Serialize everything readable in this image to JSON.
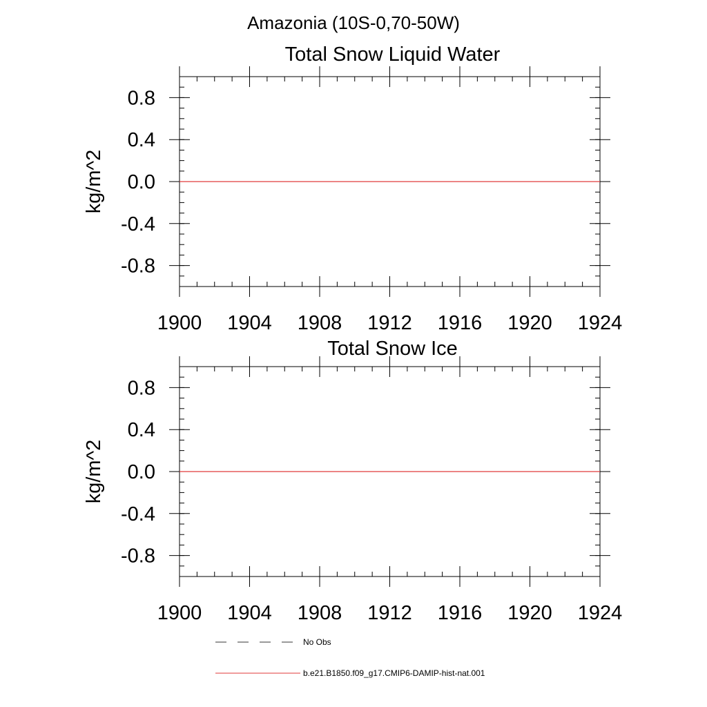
{
  "figure_title": "Amazonia (10S-0,70-50W)",
  "chart_data": [
    {
      "type": "line",
      "title": "Total Snow Liquid Water",
      "xlabel": "",
      "ylabel": "kg/m^2",
      "xlim": [
        1900,
        1924
      ],
      "ylim": [
        -1.0,
        1.0
      ],
      "x_ticks": [
        1900,
        1904,
        1908,
        1912,
        1916,
        1920,
        1924
      ],
      "x_tick_labels": [
        "1900",
        "1904",
        "1908",
        "1912",
        "1916",
        "1920",
        "1924"
      ],
      "y_ticks": [
        0.8,
        0.4,
        0.0,
        -0.4,
        -0.8
      ],
      "y_tick_labels": [
        "0.8",
        "0.4",
        "0.0",
        "-0.4",
        "-0.8"
      ],
      "grid": false,
      "series": [
        {
          "name": "b.e21.B1850.f09_g17.CMIP6-DAMIP-hist-nat.001",
          "color": "#e03a3a",
          "x": [
            1900,
            1924
          ],
          "values": [
            0.0,
            0.0
          ]
        }
      ]
    },
    {
      "type": "line",
      "title": "Total Snow Ice",
      "xlabel": "",
      "ylabel": "kg/m^2",
      "xlim": [
        1900,
        1924
      ],
      "ylim": [
        -1.0,
        1.0
      ],
      "x_ticks": [
        1900,
        1904,
        1908,
        1912,
        1916,
        1920,
        1924
      ],
      "x_tick_labels": [
        "1900",
        "1904",
        "1908",
        "1912",
        "1916",
        "1920",
        "1924"
      ],
      "y_ticks": [
        0.8,
        0.4,
        0.0,
        -0.4,
        -0.8
      ],
      "y_tick_labels": [
        "0.8",
        "0.4",
        "0.0",
        "-0.4",
        "-0.8"
      ],
      "grid": false,
      "series": [
        {
          "name": "b.e21.B1850.f09_g17.CMIP6-DAMIP-hist-nat.001",
          "color": "#e03a3a",
          "x": [
            1900,
            1924
          ],
          "values": [
            0.0,
            0.0
          ]
        }
      ]
    }
  ],
  "legend": {
    "placement": "bottom",
    "entries": [
      {
        "label": "No Obs",
        "style": "dashed",
        "color": "#333333"
      },
      {
        "label": "b.e21.B1850.f09_g17.CMIP6-DAMIP-hist-nat.001",
        "style": "solid",
        "color": "#e03a3a"
      }
    ]
  }
}
